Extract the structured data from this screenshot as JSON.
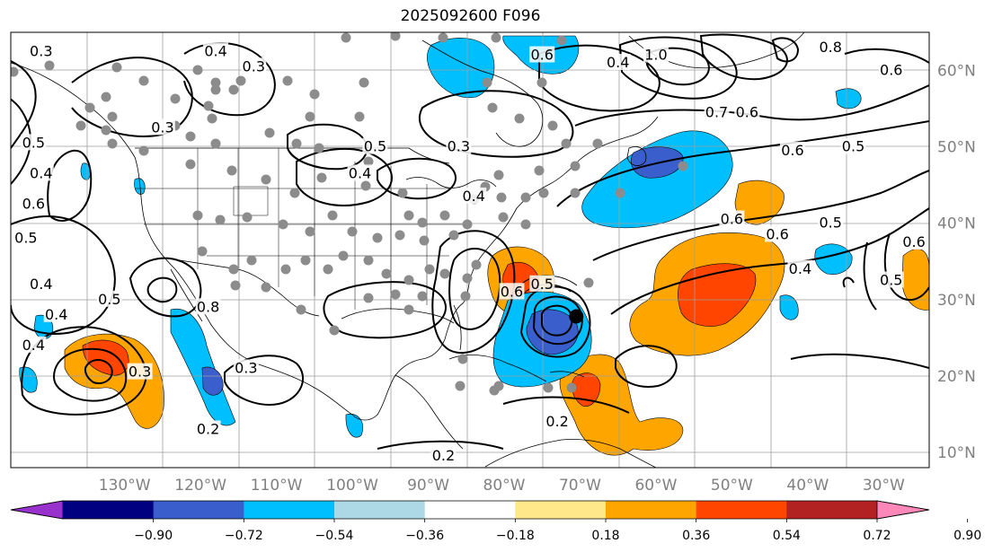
{
  "title": "2025092600 F096",
  "map": {
    "projection": "plate-carree",
    "lon_range": [
      -145,
      -24
    ],
    "lat_range": [
      8,
      65
    ],
    "gridlines": true,
    "coastlines": true,
    "state_borders": true,
    "lon_labels": [
      {
        "lon": -130,
        "text": "130°W"
      },
      {
        "lon": -120,
        "text": "120°W"
      },
      {
        "lon": -110,
        "text": "110°W"
      },
      {
        "lon": -100,
        "text": "100°W"
      },
      {
        "lon": -90,
        "text": "90°W"
      },
      {
        "lon": -80,
        "text": "80°W"
      },
      {
        "lon": -70,
        "text": "70°W"
      },
      {
        "lon": -60,
        "text": "60°W"
      },
      {
        "lon": -50,
        "text": "50°W"
      },
      {
        "lon": -40,
        "text": "40°W"
      },
      {
        "lon": -30,
        "text": "30°W"
      }
    ],
    "lat_labels": [
      {
        "lat": 60,
        "text": "60°N"
      },
      {
        "lat": 50,
        "text": "50°N"
      },
      {
        "lat": 40,
        "text": "40°N"
      },
      {
        "lat": 30,
        "text": "30°N"
      },
      {
        "lat": 20,
        "text": "20°N"
      },
      {
        "lat": 10,
        "text": "10°N"
      }
    ],
    "colors": {
      "grid": "#9e9e9e",
      "tick_label": "#808080",
      "contour": "#000000",
      "station": "#8c8c8c",
      "land_outline": "#000000"
    },
    "contour_labels": [
      {
        "text": "0.3",
        "lon": -141,
        "lat": 62.5
      },
      {
        "text": "0.4",
        "lon": -118,
        "lat": 62.5
      },
      {
        "text": "0.3",
        "lon": -113,
        "lat": 60.5
      },
      {
        "text": "0.5",
        "lon": -142,
        "lat": 50.5
      },
      {
        "text": "0.4",
        "lon": -141,
        "lat": 46.5
      },
      {
        "text": "0.3",
        "lon": -125,
        "lat": 52.5
      },
      {
        "text": "0.6",
        "lon": -142,
        "lat": 42.5
      },
      {
        "text": "0.5",
        "lon": -143,
        "lat": 38
      },
      {
        "text": "0.4",
        "lon": -141,
        "lat": 32
      },
      {
        "text": "0.5",
        "lon": -132,
        "lat": 30
      },
      {
        "text": "0.4",
        "lon": -142,
        "lat": 24
      },
      {
        "text": "0.3",
        "lon": -128,
        "lat": 20.5
      },
      {
        "text": "0.3",
        "lon": -114,
        "lat": 21
      },
      {
        "text": "0.2",
        "lon": -119,
        "lat": 13
      },
      {
        "text": "0.5",
        "lon": -97,
        "lat": 50
      },
      {
        "text": "0.4",
        "lon": -99,
        "lat": 46.5
      },
      {
        "text": "0.3",
        "lon": -86,
        "lat": 50
      },
      {
        "text": "0.4",
        "lon": -84,
        "lat": 43.5
      },
      {
        "text": "0.6",
        "lon": -75,
        "lat": 62
      },
      {
        "text": "0.4",
        "lon": -65,
        "lat": 61
      },
      {
        "text": "1.0",
        "lon": -60,
        "lat": 62
      },
      {
        "text": "0.8",
        "lon": -37,
        "lat": 63
      },
      {
        "text": "0.7",
        "lon": -52,
        "lat": 54.5
      },
      {
        "text": "0.6",
        "lon": -48,
        "lat": 54.5
      },
      {
        "text": "0.6",
        "lon": -42,
        "lat": 49.5
      },
      {
        "text": "0.5",
        "lon": -34,
        "lat": 50
      },
      {
        "text": "0.6",
        "lon": -29,
        "lat": 60
      },
      {
        "text": "0.6",
        "lon": -50,
        "lat": 40.5
      },
      {
        "text": "0.6",
        "lon": -44,
        "lat": 38.5
      },
      {
        "text": "0.5",
        "lon": -37,
        "lat": 40
      },
      {
        "text": "0.4",
        "lon": -41,
        "lat": 34
      },
      {
        "text": "0.5",
        "lon": -29,
        "lat": 32.5
      },
      {
        "text": "0.6",
        "lon": -26,
        "lat": 37.5
      },
      {
        "text": "0.6",
        "lon": -79,
        "lat": 31
      },
      {
        "text": "0.5",
        "lon": -75,
        "lat": 32
      },
      {
        "text": "0.2",
        "lon": -73,
        "lat": 14
      },
      {
        "text": "0.2",
        "lon": -88,
        "lat": 9.5
      },
      {
        "text": "0.8",
        "lon": -119,
        "lat": 29
      },
      {
        "text": "0.4",
        "lon": -139,
        "lat": 28
      }
    ],
    "storm_marker": {
      "lon": -70.5,
      "lat": 27.8
    }
  },
  "colorbar": {
    "ticks": [
      "−0.90",
      "−0.72",
      "−0.54",
      "−0.36",
      "−0.18",
      "0.18",
      "0.36",
      "0.54",
      "0.72",
      "0.90"
    ],
    "colors": [
      "#9932cc",
      "#000080",
      "#3a5fcd",
      "#00bfff",
      "#add8e6",
      "#ffffff",
      "#ffe88a",
      "#ffa500",
      "#ff4500",
      "#b22222",
      "#ff88b8"
    ]
  }
}
